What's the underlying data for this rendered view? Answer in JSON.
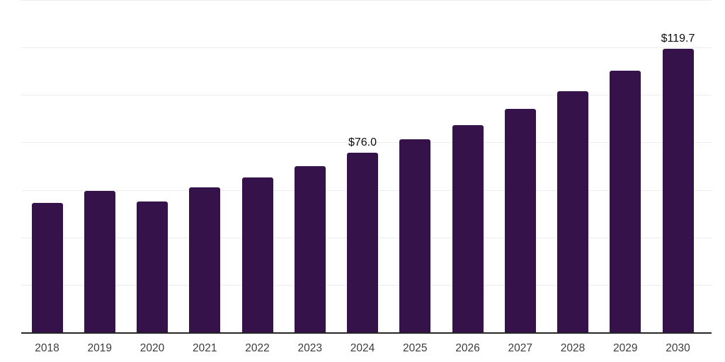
{
  "chart_data": {
    "type": "bar",
    "categories": [
      "2018",
      "2019",
      "2020",
      "2021",
      "2022",
      "2023",
      "2024",
      "2025",
      "2026",
      "2027",
      "2028",
      "2029",
      "2030"
    ],
    "values": [
      54.7,
      59.9,
      55.5,
      61.4,
      65.4,
      70.4,
      76.0,
      81.5,
      87.7,
      94.4,
      102.0,
      110.4,
      119.7
    ],
    "data_labels": {
      "2024": "$76.0",
      "2030": "$119.7"
    },
    "labeled_categories": [
      "2024",
      "2030"
    ],
    "xlabel": "",
    "ylabel": "",
    "ylim": [
      0,
      140
    ],
    "gridline_step": 20,
    "grid": "horizontal-only",
    "legend_position": "none",
    "colors": {
      "bar": "#35134A",
      "gridline": "#ededed",
      "axis_line": "#262626",
      "tick_label": "#3c3c3c",
      "data_label": "#0d0d0d",
      "background": "#ffffff"
    }
  }
}
